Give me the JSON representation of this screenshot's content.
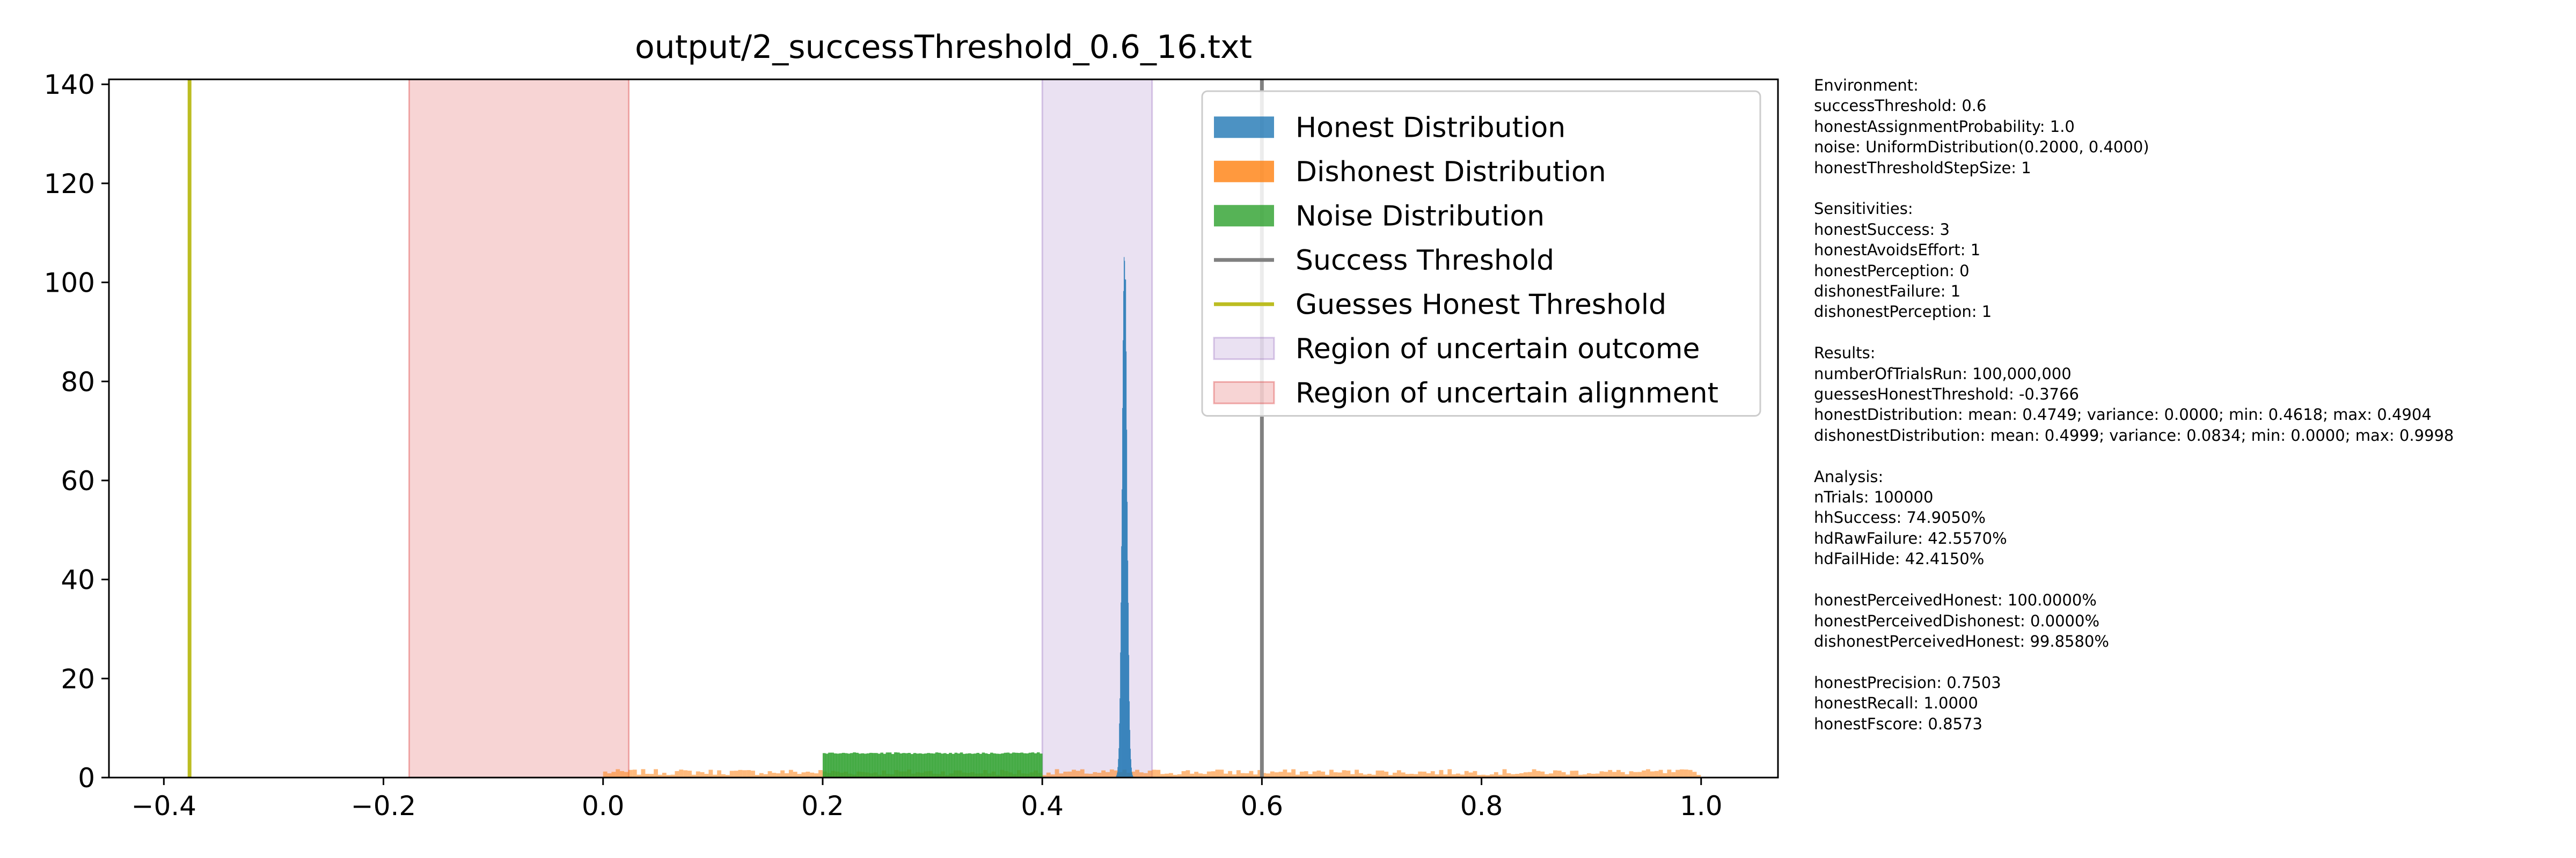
{
  "chart_data": {
    "type": "histogram",
    "title": "output/2_successThreshold_0.6_16.txt",
    "xlabel": "",
    "ylabel": "",
    "xlim": [
      -0.45,
      1.07
    ],
    "ylim": [
      0,
      141
    ],
    "x_ticks": [
      {
        "value": -0.4,
        "label": "−0.4"
      },
      {
        "value": -0.2,
        "label": "−0.2"
      },
      {
        "value": 0.0,
        "label": "0.0"
      },
      {
        "value": 0.2,
        "label": "0.2"
      },
      {
        "value": 0.4,
        "label": "0.4"
      },
      {
        "value": 0.6,
        "label": "0.6"
      },
      {
        "value": 0.8,
        "label": "0.8"
      },
      {
        "value": 1.0,
        "label": "1.0"
      }
    ],
    "y_ticks": [
      {
        "value": 0,
        "label": "0"
      },
      {
        "value": 20,
        "label": "20"
      },
      {
        "value": 40,
        "label": "40"
      },
      {
        "value": 60,
        "label": "60"
      },
      {
        "value": 80,
        "label": "80"
      },
      {
        "value": 100,
        "label": "100"
      },
      {
        "value": 120,
        "label": "120"
      },
      {
        "value": 140,
        "label": "140"
      }
    ],
    "legend_position": "upper-right",
    "series": [
      {
        "name": "Honest Distribution",
        "kind": "hist",
        "color": "#1f77b4",
        "range": [
          0.4618,
          0.4904
        ],
        "mean": 0.4749,
        "peak": 114
      },
      {
        "name": "Dishonest Distribution",
        "kind": "hist",
        "color": "#ff7f0e",
        "range": [
          0.0,
          0.9998
        ],
        "typical_height": 1.1
      },
      {
        "name": "Noise Distribution",
        "kind": "hist",
        "color": "#2ca02c",
        "range": [
          0.2,
          0.4
        ],
        "height": 5
      },
      {
        "name": "Success Threshold",
        "kind": "vline",
        "color": "#808080",
        "x": 0.6
      },
      {
        "name": "Guesses Honest Threshold",
        "kind": "vline",
        "color": "#bcbd22",
        "x": -0.3766
      },
      {
        "name": "Region of uncertain outcome",
        "kind": "span",
        "color": "#9467bd",
        "x": [
          0.4,
          0.5
        ]
      },
      {
        "name": "Region of uncertain alignment",
        "kind": "span",
        "color": "#d62728",
        "x": [
          -0.1766,
          0.0234
        ]
      }
    ]
  },
  "stats_panel": [
    [
      "Environment:",
      "successThreshold: 0.6",
      "honestAssignmentProbability: 1.0",
      "noise: UniformDistribution(0.2000, 0.4000)",
      "honestThresholdStepSize: 1"
    ],
    [
      "Sensitivities:",
      "honestSuccess: 3",
      "honestAvoidsEffort: 1",
      "honestPerception: 0",
      "dishonestFailure: 1",
      "dishonestPerception: 1"
    ],
    [
      "Results:",
      "numberOfTrialsRun: 100,000,000",
      "guessesHonestThreshold: -0.3766",
      "honestDistribution: mean: 0.4749; variance: 0.0000; min: 0.4618; max: 0.4904",
      "dishonestDistribution: mean: 0.4999; variance: 0.0834; min: 0.0000; max: 0.9998"
    ],
    [
      "Analysis:",
      "nTrials: 100000",
      "hhSuccess: 74.9050%",
      "hdRawFailure: 42.5570%",
      "hdFailHide: 42.4150%"
    ],
    [
      "honestPerceivedHonest: 100.0000%",
      "honestPerceivedDishonest: 0.0000%",
      "dishonestPerceivedHonest: 99.8580%"
    ],
    [
      "honestPrecision: 0.7503",
      "honestRecall: 1.0000",
      "honestFscore: 0.8573"
    ]
  ]
}
